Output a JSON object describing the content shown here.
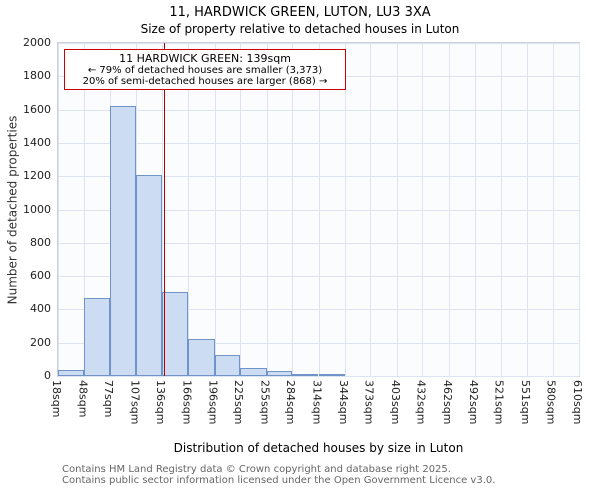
{
  "chart_data": {
    "type": "bar",
    "title": "11, HARDWICK GREEN, LUTON, LU3 3XA",
    "subtitle": "Size of property relative to detached houses in Luton",
    "xlabel": "Distribution of detached houses by size in Luton",
    "ylabel": "Number of detached properties",
    "x_min": 18,
    "x_max": 610,
    "ylim": [
      0,
      2000
    ],
    "y_tick_step": 200,
    "grid": true,
    "bin_edges": [
      18,
      48,
      77,
      107,
      136,
      166,
      196,
      225,
      255,
      284,
      314,
      344,
      373,
      403,
      432,
      462,
      492,
      521,
      551,
      580,
      610
    ],
    "x_tick_labels": [
      "18sqm",
      "48sqm",
      "77sqm",
      "107sqm",
      "136sqm",
      "166sqm",
      "196sqm",
      "225sqm",
      "255sqm",
      "284sqm",
      "314sqm",
      "344sqm",
      "373sqm",
      "403sqm",
      "432sqm",
      "462sqm",
      "492sqm",
      "521sqm",
      "551sqm",
      "580sqm",
      "610sqm"
    ],
    "values": [
      35,
      470,
      1620,
      1210,
      505,
      220,
      125,
      50,
      30,
      15,
      10,
      0,
      0,
      0,
      0,
      0,
      0,
      0,
      0,
      0
    ],
    "marker": {
      "value_sqm": 139,
      "color": "#b30000"
    },
    "bar_fill": "#ccdcf2",
    "bar_border": "#7093c8"
  },
  "annotation": {
    "line1": "11 HARDWICK GREEN: 139sqm",
    "line2": "← 79% of detached houses are smaller (3,373)",
    "line3": "20% of semi-detached houses are larger (868) →"
  },
  "footer": {
    "line1": "Contains HM Land Registry data © Crown copyright and database right 2025.",
    "line2": "Contains public sector information licensed under the Open Government Licence v3.0."
  }
}
